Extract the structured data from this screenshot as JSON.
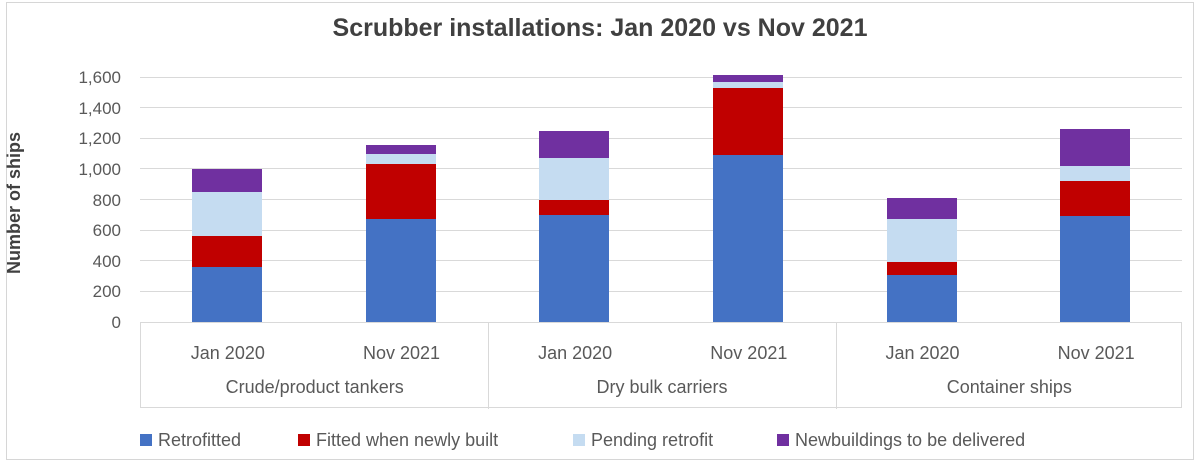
{
  "title": "Scrubber installations: Jan 2020 vs Nov 2021",
  "chart_data": {
    "type": "bar",
    "stacked": true,
    "title": "Scrubber installations: Jan 2020 vs Nov 2021",
    "ylabel": "Number of ships",
    "xlabel": "",
    "ylim": [
      0,
      1600
    ],
    "ytick_step": 200,
    "ytick_labels": [
      "0",
      "200",
      "400",
      "600",
      "800",
      "1,000",
      "1,200",
      "1,400",
      "1,600"
    ],
    "grid": true,
    "legend_position": "bottom",
    "group_labels": [
      "Crude/product tankers",
      "Dry bulk carriers",
      "Container ships"
    ],
    "categories": [
      "Jan 2020",
      "Nov 2021",
      "Jan 2020",
      "Nov 2021",
      "Jan 2020",
      "Nov 2021"
    ],
    "series": [
      {
        "name": "Retrofitted",
        "color": "#4472C4",
        "values": [
          360,
          670,
          700,
          1090,
          310,
          690
        ]
      },
      {
        "name": "Fitted when newly built",
        "color": "#C00000",
        "values": [
          200,
          365,
          100,
          440,
          85,
          230
        ]
      },
      {
        "name": "Pending retrofit",
        "color": "#C5DCF1",
        "values": [
          290,
          60,
          270,
          35,
          275,
          100
        ]
      },
      {
        "name": "Newbuildings to be delivered",
        "color": "#7030A0",
        "values": [
          150,
          60,
          180,
          45,
          140,
          240
        ]
      }
    ],
    "bar_totals": [
      1000,
      1155,
      1250,
      1610,
      810,
      1260
    ],
    "colors": {
      "title_text": "#404040",
      "axis_text": "#595959",
      "gridline": "#D9D9D9",
      "frame_border": "#D6D6D6"
    }
  }
}
